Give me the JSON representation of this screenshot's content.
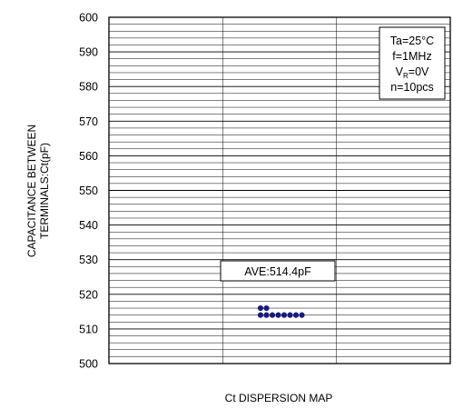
{
  "chart_data": {
    "type": "scatter",
    "title": "",
    "xlabel": "Ct DISPERSION MAP",
    "ylabel_line1": "CAPACITANCE BETWEEN",
    "ylabel_line2": "TERMINALS:Ct(pF)",
    "ylim": [
      500,
      600
    ],
    "y_ticks": [
      "600",
      "590",
      "580",
      "570",
      "560",
      "550",
      "540",
      "530",
      "520",
      "510",
      "500"
    ],
    "x_divisions": 3,
    "grid": true,
    "minor_grid_step": 2,
    "points": [
      {
        "x": 0,
        "y": 516
      },
      {
        "x": 1,
        "y": 516
      },
      {
        "x": 0,
        "y": 514
      },
      {
        "x": 1,
        "y": 514
      },
      {
        "x": 2,
        "y": 514
      },
      {
        "x": 3,
        "y": 514
      },
      {
        "x": 4,
        "y": 514
      },
      {
        "x": 5,
        "y": 514
      },
      {
        "x": 6,
        "y": 514
      },
      {
        "x": 7,
        "y": 514
      }
    ],
    "point_color": "#1a1a7a",
    "average_label": "AVE:514.4pF",
    "average_value": 514.4,
    "conditions": {
      "ta": "Ta=25°C",
      "freq": "f=1MHz",
      "vr_main": "V",
      "vr_sub": "R",
      "vr_rest": "=0V",
      "n": "n=10pcs"
    }
  }
}
